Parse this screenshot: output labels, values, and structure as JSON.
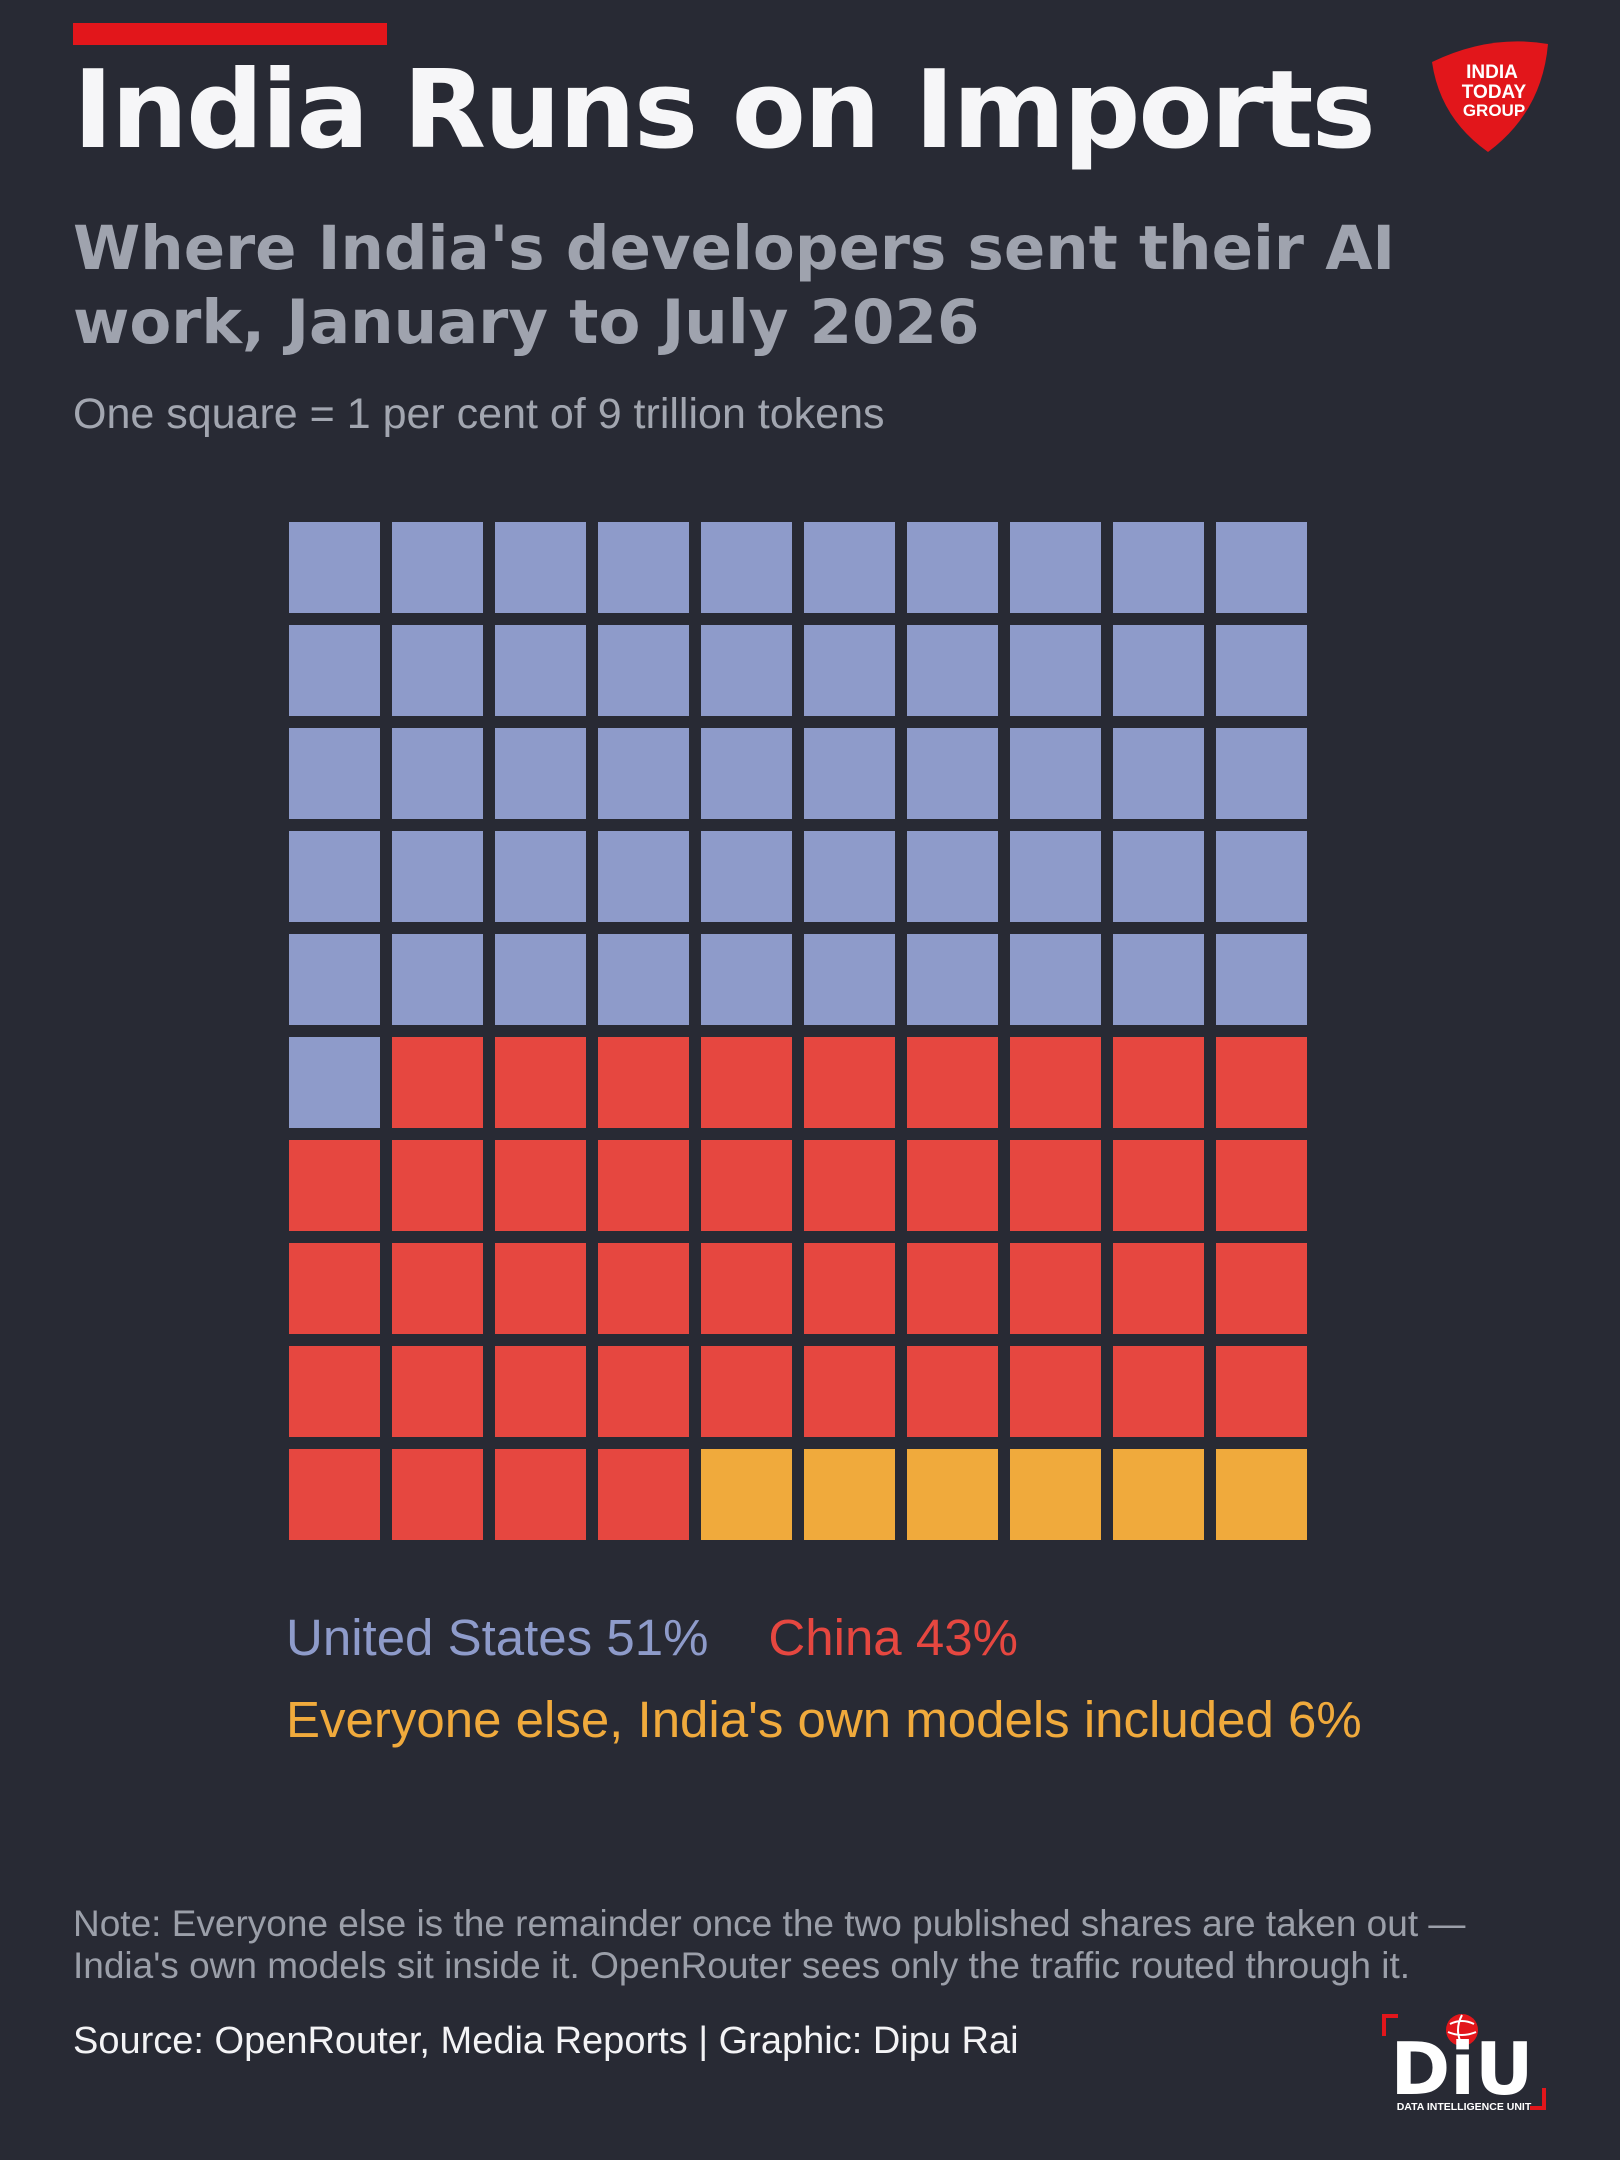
{
  "header": {
    "title": "India Runs on Imports",
    "subtitle": "Where India's developers sent their AI work, January to July 2026",
    "unit_note": "One square = 1 per cent of 9 trillion tokens"
  },
  "logo": {
    "name": "India Today Group",
    "line1": "INDIA",
    "line2": "TODAY",
    "line3": "GROUP",
    "color": "#e2161b"
  },
  "chart_data": {
    "type": "waffle",
    "grid": {
      "rows": 10,
      "columns": 10
    },
    "total_units": 100,
    "series": [
      {
        "name": "United States",
        "value": 51,
        "label": "United States 51%",
        "color": "#8e9bca"
      },
      {
        "name": "China",
        "value": 43,
        "label": "China 43%",
        "color": "#e64740"
      },
      {
        "name": "Everyone else, India's own models included",
        "value": 6,
        "label": "Everyone else, India's own models included 6%",
        "color": "#f0aa3c"
      }
    ],
    "legend_position": "bottom"
  },
  "footer": {
    "note": "Note: Everyone else is the remainder once the two published shares are taken out — India's own models sit inside it. OpenRouter sees only the traffic routed through it.",
    "source": "Source: OpenRouter, Media Reports | Graphic: Dipu Rai",
    "diu_letters": "DiU",
    "diu_caption": "DATA INTELLIGENCE UNIT"
  },
  "colors": {
    "background": "#282a34",
    "accent": "#e2161b"
  }
}
